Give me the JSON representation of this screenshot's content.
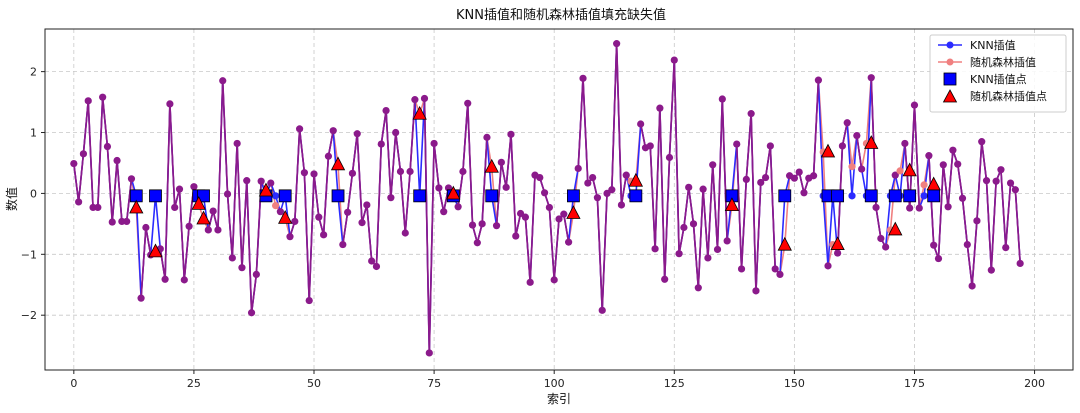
{
  "chart_data": {
    "type": "line",
    "title": "KNN插值和随机森林插值填充缺失值",
    "xlabel": "索引",
    "ylabel": "数值",
    "xlim": [
      -6,
      208
    ],
    "ylim": [
      -2.9,
      2.7
    ],
    "xticks": [
      0,
      25,
      50,
      75,
      100,
      125,
      150,
      175,
      200
    ],
    "yticks": [
      -2,
      -1,
      0,
      1,
      2
    ],
    "grid": true,
    "legend_position": "top-right",
    "legend": [
      "KNN插值",
      "随机森林插值",
      "KNN插值点",
      "随机森林插值点"
    ],
    "colors": {
      "knn": "#2b2bff",
      "rf": "#f08080",
      "overlap": "#8b1a8b",
      "knn_point": "#0000ff",
      "rf_point": "#ff0000"
    },
    "series": [
      {
        "name": "KNN插值",
        "values": [
          0.49,
          -0.14,
          0.65,
          1.52,
          -0.23,
          -0.23,
          1.58,
          0.77,
          -0.47,
          0.54,
          -0.46,
          -0.46,
          0.24,
          -0.04,
          -1.72,
          -0.56,
          -1.01,
          -0.04,
          -0.91,
          -1.41,
          1.47,
          -0.23,
          0.07,
          -1.42,
          -0.54,
          0.11,
          -0.04,
          -0.04,
          -0.6,
          -0.29,
          -0.6,
          1.85,
          -0.01,
          -1.06,
          0.82,
          -1.22,
          0.21,
          -1.96,
          -1.33,
          0.2,
          -0.04,
          0.17,
          -0.04,
          -0.3,
          -0.04,
          -0.71,
          -0.46,
          1.06,
          0.34,
          -1.76,
          0.32,
          -0.39,
          -0.68,
          0.61,
          1.03,
          -0.04,
          -0.84,
          -0.31,
          0.33,
          0.98,
          -0.48,
          -0.19,
          -1.11,
          -1.2,
          0.81,
          1.36,
          -0.07,
          1.0,
          0.36,
          -0.65,
          0.36,
          1.54,
          -0.04,
          1.56,
          -2.62,
          0.82,
          0.09,
          -0.3,
          0.09,
          -0.04,
          -0.22,
          0.36,
          1.48,
          -0.52,
          -0.81,
          -0.5,
          0.92,
          -0.04,
          -0.53,
          0.51,
          0.1,
          0.97,
          -0.7,
          -0.33,
          -0.39,
          -1.46,
          0.3,
          0.26,
          0.01,
          -0.23,
          -1.42,
          -0.42,
          -0.34,
          -0.8,
          -0.04,
          0.41,
          1.89,
          0.17,
          0.26,
          -0.07,
          -1.92,
          0.0,
          0.06,
          2.46,
          -0.19,
          0.3,
          -0.04,
          -0.04,
          1.14,
          0.75,
          0.78,
          -0.91,
          1.4,
          -1.41,
          0.59,
          2.19,
          -0.99,
          -0.56,
          0.1,
          -0.5,
          -1.55,
          0.07,
          -1.06,
          0.47,
          -0.92,
          1.55,
          -0.78,
          -0.04,
          0.81,
          -1.24,
          0.23,
          1.31,
          -1.6,
          0.18,
          0.26,
          0.78,
          -1.24,
          -1.33,
          -0.04,
          0.29,
          0.25,
          0.35,
          0.01,
          0.25,
          0.29,
          1.86,
          -0.04,
          -1.19,
          -0.04,
          -0.98,
          0.78,
          1.16,
          -0.04,
          0.95,
          0.4,
          -0.04,
          1.9,
          -0.23,
          -0.74,
          -0.88,
          -0.04,
          0.3,
          -0.04,
          0.82,
          -0.24,
          1.45,
          -0.24,
          -0.04,
          0.62,
          -0.85,
          -1.07,
          0.47,
          -0.22,
          0.71,
          0.48,
          -0.08,
          -0.84,
          -1.52,
          -0.45,
          0.85,
          0.21,
          -1.26,
          0.2,
          0.39,
          -0.89,
          0.17,
          0.06,
          -1.15
        ]
      },
      {
        "name": "随机森林插值",
        "values": [
          0.49,
          -0.14,
          0.65,
          1.52,
          -0.23,
          -0.23,
          1.58,
          0.77,
          -0.47,
          0.54,
          -0.46,
          -0.46,
          0.24,
          -0.24,
          -1.72,
          -0.56,
          -1.01,
          -0.96,
          -0.91,
          -1.41,
          1.47,
          -0.23,
          0.07,
          -1.42,
          -0.54,
          0.11,
          -0.18,
          -0.42,
          -0.6,
          -0.29,
          -0.6,
          1.85,
          -0.01,
          -1.06,
          0.82,
          -1.22,
          0.21,
          -1.96,
          -1.33,
          0.2,
          0.04,
          0.17,
          -0.2,
          -0.3,
          -0.41,
          -0.71,
          -0.46,
          1.06,
          0.34,
          -1.76,
          0.32,
          -0.39,
          -0.68,
          0.61,
          1.03,
          0.47,
          -0.84,
          -0.31,
          0.33,
          0.98,
          -0.48,
          -0.19,
          -1.11,
          -1.2,
          0.81,
          1.36,
          -0.07,
          1.0,
          0.36,
          -0.65,
          0.36,
          1.54,
          1.3,
          1.56,
          -2.62,
          0.82,
          0.09,
          -0.3,
          0.09,
          -0.01,
          -0.22,
          0.36,
          1.48,
          -0.52,
          -0.81,
          -0.5,
          0.92,
          0.43,
          -0.53,
          0.51,
          0.1,
          0.97,
          -0.7,
          -0.33,
          -0.39,
          -1.46,
          0.3,
          0.26,
          0.01,
          -0.23,
          -1.42,
          -0.42,
          -0.34,
          -0.8,
          -0.33,
          0.41,
          1.89,
          0.17,
          0.26,
          -0.07,
          -1.92,
          0.0,
          0.06,
          2.46,
          -0.19,
          0.3,
          0.2,
          0.22,
          1.14,
          0.75,
          0.78,
          -0.91,
          1.4,
          -1.41,
          0.59,
          2.19,
          -0.99,
          -0.56,
          0.1,
          -0.5,
          -1.55,
          0.07,
          -1.06,
          0.47,
          -0.92,
          1.55,
          -0.78,
          -0.2,
          0.81,
          -1.24,
          0.23,
          1.31,
          -1.6,
          0.18,
          0.26,
          0.78,
          -1.24,
          -1.33,
          -0.85,
          0.29,
          0.25,
          0.35,
          0.01,
          0.25,
          0.29,
          1.86,
          0.68,
          -1.19,
          -0.84,
          -0.98,
          0.78,
          1.16,
          0.44,
          0.95,
          0.4,
          0.82,
          1.9,
          -0.23,
          -0.74,
          -0.88,
          -0.6,
          0.3,
          0.37,
          0.82,
          -0.24,
          1.45,
          -0.24,
          0.14,
          0.62,
          -0.85,
          -1.07,
          0.47,
          -0.22,
          0.71,
          0.48,
          -0.08,
          -0.84,
          -1.52,
          -0.45,
          0.85,
          0.21,
          -1.26,
          0.2,
          0.39,
          -0.89,
          0.17,
          0.06,
          -1.15
        ]
      }
    ],
    "missing_indices": [
      13,
      17,
      26,
      27,
      40,
      44,
      55,
      72,
      79,
      87,
      104,
      117,
      137,
      148,
      157,
      159,
      166,
      171,
      174,
      179
    ],
    "knn_points": [
      -0.04,
      -0.04,
      -0.04,
      -0.04,
      -0.04,
      -0.04,
      -0.04,
      -0.04,
      -0.04,
      -0.04,
      -0.04,
      -0.04,
      -0.04,
      -0.04,
      -0.04,
      -0.04,
      -0.04,
      -0.04,
      -0.04,
      -0.04
    ],
    "rf_points": [
      -0.24,
      -0.96,
      -0.18,
      -0.42,
      0.04,
      -0.41,
      0.47,
      1.3,
      -0.01,
      0.43,
      -0.33,
      0.2,
      -0.2,
      -0.85,
      0.68,
      -0.84,
      0.82,
      -0.6,
      0.37,
      0.14
    ]
  }
}
